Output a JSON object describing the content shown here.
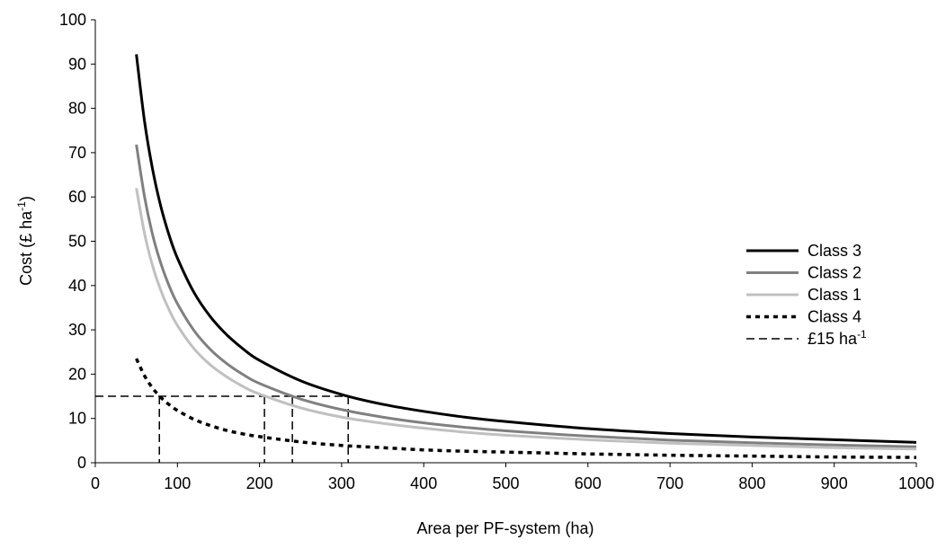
{
  "chart_data": {
    "type": "line",
    "xlabel": "Area per PF-system (ha)",
    "ylabel": "Cost (£ ha",
    "ylabel_sup": "-1",
    "ylabel_end": ")",
    "xlim": [
      0,
      1000
    ],
    "ylim": [
      0,
      100
    ],
    "x_ticks": [
      "0",
      "100",
      "200",
      "300",
      "400",
      "500",
      "600",
      "700",
      "800",
      "900",
      "1000"
    ],
    "y_ticks": [
      "0",
      "10",
      "20",
      "30",
      "40",
      "50",
      "60",
      "70",
      "80",
      "90",
      "100"
    ],
    "legend_position": "right",
    "x": [
      50,
      60,
      70,
      80,
      90,
      100,
      120,
      140,
      160,
      180,
      200,
      250,
      300,
      350,
      400,
      450,
      500,
      600,
      700,
      800,
      900,
      1000
    ],
    "series": [
      {
        "name": "Class 3",
        "color": "#000000",
        "style": "solid",
        "values": [
          92.2,
          77.0,
          66.0,
          57.7,
          51.3,
          46.2,
          38.5,
          33.0,
          28.9,
          25.7,
          23.1,
          18.5,
          15.4,
          13.2,
          11.6,
          10.3,
          9.3,
          7.7,
          6.6,
          5.8,
          5.2,
          4.6
        ]
      },
      {
        "name": "Class 2",
        "color": "#808080",
        "style": "solid",
        "values": [
          71.8,
          60.0,
          51.3,
          44.9,
          39.9,
          35.9,
          29.9,
          25.6,
          22.4,
          19.9,
          17.9,
          14.4,
          12.0,
          10.3,
          9.0,
          8.0,
          7.2,
          6.0,
          5.1,
          4.5,
          4.0,
          3.6
        ]
      },
      {
        "name": "Class 1",
        "color": "#c0c0c0",
        "style": "solid",
        "values": [
          62.0,
          51.7,
          44.3,
          38.8,
          34.5,
          31.0,
          25.8,
          22.1,
          19.4,
          17.2,
          15.5,
          12.4,
          10.3,
          8.9,
          7.8,
          6.9,
          6.2,
          5.2,
          4.4,
          3.9,
          3.4,
          3.1
        ]
      },
      {
        "name": "Class 4",
        "color": "#000000",
        "style": "dotted",
        "values": [
          23.5,
          19.6,
          16.8,
          14.7,
          13.1,
          11.8,
          9.8,
          8.4,
          7.3,
          6.5,
          5.9,
          4.7,
          3.9,
          3.4,
          2.9,
          2.6,
          2.4,
          2.0,
          1.7,
          1.5,
          1.3,
          1.2
        ]
      }
    ],
    "threshold": {
      "name": "£15 ha",
      "name_sup": "-1",
      "color": "#000000",
      "style": "dashed",
      "y": 15,
      "x_start": 0,
      "x_end": 308,
      "drop_lines_x": [
        78,
        206,
        240,
        308
      ]
    }
  }
}
